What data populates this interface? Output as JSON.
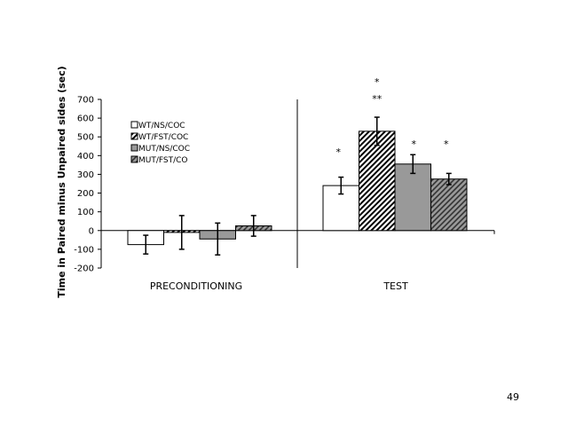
{
  "page_number": "49",
  "chart_data": {
    "type": "bar",
    "ylabel": "Time in Paired minus Unpaired sides (sec)",
    "xlabel": "",
    "ylim": [
      -200,
      700
    ],
    "yticks": [
      -200,
      -100,
      0,
      100,
      200,
      300,
      400,
      500,
      600,
      700
    ],
    "ytick_labels": [
      "-200",
      "-100",
      "0",
      "100",
      "200",
      "300",
      "400",
      "500",
      "600",
      "700"
    ],
    "grid": false,
    "legend_position": "top-left",
    "categories": [
      "PRECONDITIONING",
      "TEST"
    ],
    "series": [
      {
        "name": "WT/NS/COC",
        "fill": "white",
        "color": "#ffffff",
        "values": [
          -75,
          240
        ],
        "errors": [
          50,
          45
        ]
      },
      {
        "name": "WT/FST/COC",
        "fill": "diagonal-hatch",
        "color": "#000000",
        "values": [
          -10,
          530
        ],
        "errors": [
          90,
          75
        ]
      },
      {
        "name": "MUT/NS/COC",
        "fill": "gray",
        "color": "#999999",
        "values": [
          -45,
          355
        ],
        "errors": [
          85,
          50
        ]
      },
      {
        "name": "MUT/FST/CO",
        "fill": "gray-hatch",
        "color": "#808080",
        "values": [
          25,
          275
        ],
        "errors": [
          55,
          30
        ]
      }
    ],
    "annotations": [
      {
        "text": "*",
        "category": "TEST",
        "series": 0
      },
      {
        "text": "*",
        "category": "TEST",
        "series": 1
      },
      {
        "text": "**",
        "category": "TEST",
        "series": 1
      },
      {
        "text": "*",
        "category": "TEST",
        "series": 2
      },
      {
        "text": "*",
        "category": "TEST",
        "series": 3
      }
    ]
  }
}
